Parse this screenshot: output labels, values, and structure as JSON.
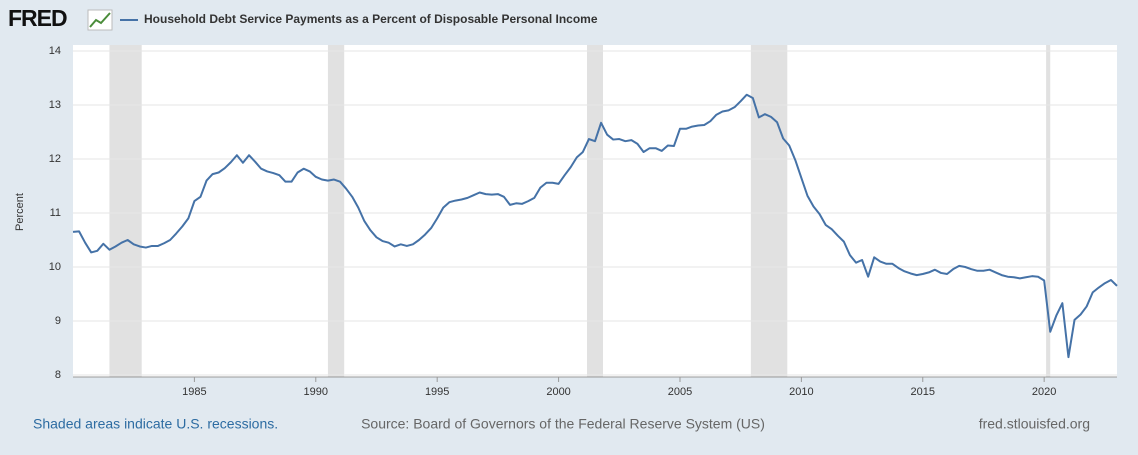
{
  "brand": "FRED",
  "chart_data": {
    "type": "line",
    "series": [
      {
        "name": "Household Debt Service Payments as a Percent of Disposable Personal Income",
        "color": "#4572a7",
        "values": [
          10.65,
          10.66,
          10.45,
          10.27,
          10.3,
          10.43,
          10.32,
          10.38,
          10.45,
          10.5,
          10.42,
          10.38,
          10.36,
          10.39,
          10.39,
          10.44,
          10.5,
          10.62,
          10.75,
          10.9,
          11.22,
          11.3,
          11.6,
          11.72,
          11.75,
          11.83,
          11.94,
          12.07,
          11.93,
          12.07,
          11.95,
          11.82,
          11.77,
          11.74,
          11.7,
          11.58,
          11.58,
          11.75,
          11.82,
          11.77,
          11.67,
          11.62,
          11.6,
          11.62,
          11.58,
          11.45,
          11.3,
          11.1,
          10.85,
          10.68,
          10.55,
          10.48,
          10.45,
          10.38,
          10.42,
          10.39,
          10.42,
          10.5,
          10.6,
          10.72,
          10.9,
          11.1,
          11.2,
          11.23,
          11.25,
          11.28,
          11.33,
          11.38,
          11.35,
          11.34,
          11.35,
          11.3,
          11.15,
          11.18,
          11.17,
          11.22,
          11.28,
          11.47,
          11.56,
          11.56,
          11.54,
          11.7,
          11.85,
          12.03,
          12.13,
          12.37,
          12.33,
          12.67,
          12.45,
          12.36,
          12.37,
          12.33,
          12.35,
          12.28,
          12.13,
          12.2,
          12.2,
          12.15,
          12.25,
          12.24,
          12.56,
          12.56,
          12.6,
          12.62,
          12.63,
          12.7,
          12.82,
          12.88,
          12.9,
          12.96,
          13.07,
          13.19,
          13.13,
          12.77,
          12.83,
          12.78,
          12.68,
          12.38,
          12.25,
          11.98,
          11.65,
          11.32,
          11.12,
          10.98,
          10.78,
          10.7,
          10.58,
          10.47,
          10.22,
          10.08,
          10.13,
          9.82,
          10.18,
          10.1,
          10.06,
          10.06,
          9.98,
          9.92,
          9.88,
          9.85,
          9.87,
          9.9,
          9.95,
          9.89,
          9.87,
          9.96,
          10.02,
          10.0,
          9.96,
          9.93,
          9.93,
          9.95,
          9.9,
          9.85,
          9.82,
          9.81,
          9.79,
          9.81,
          9.83,
          9.82,
          9.75,
          8.8,
          9.1,
          9.33,
          8.33,
          9.02,
          9.12,
          9.27,
          9.53,
          9.62,
          9.7,
          9.76,
          9.65
        ]
      }
    ],
    "x": [
      1980,
      1980.25,
      1980.5,
      1980.75,
      1981,
      1981.25,
      1981.5,
      1981.75,
      1982,
      1982.25,
      1982.5,
      1982.75,
      1983,
      1983.25,
      1983.5,
      1983.75,
      1984,
      1984.25,
      1984.5,
      1984.75,
      1985,
      1985.25,
      1985.5,
      1985.75,
      1986,
      1986.25,
      1986.5,
      1986.75,
      1987,
      1987.25,
      1987.5,
      1987.75,
      1988,
      1988.25,
      1988.5,
      1988.75,
      1989,
      1989.25,
      1989.5,
      1989.75,
      1990,
      1990.25,
      1990.5,
      1990.75,
      1991,
      1991.25,
      1991.5,
      1991.75,
      1992,
      1992.25,
      1992.5,
      1992.75,
      1993,
      1993.25,
      1993.5,
      1993.75,
      1994,
      1994.25,
      1994.5,
      1994.75,
      1995,
      1995.25,
      1995.5,
      1995.75,
      1996,
      1996.25,
      1996.5,
      1996.75,
      1997,
      1997.25,
      1997.5,
      1997.75,
      1998,
      1998.25,
      1998.5,
      1998.75,
      1999,
      1999.25,
      1999.5,
      1999.75,
      2000,
      2000.25,
      2000.5,
      2000.75,
      2001,
      2001.25,
      2001.5,
      2001.75,
      2002,
      2002.25,
      2002.5,
      2002.75,
      2003,
      2003.25,
      2003.5,
      2003.75,
      2004,
      2004.25,
      2004.5,
      2004.75,
      2005,
      2005.25,
      2005.5,
      2005.75,
      2006,
      2006.25,
      2006.5,
      2006.75,
      2007,
      2007.25,
      2007.5,
      2007.75,
      2008,
      2008.25,
      2008.5,
      2008.75,
      2009,
      2009.25,
      2009.5,
      2009.75,
      2010,
      2010.25,
      2010.5,
      2010.75,
      2011,
      2011.25,
      2011.5,
      2011.75,
      2012,
      2012.25,
      2012.5,
      2012.75,
      2013,
      2013.25,
      2013.5,
      2013.75,
      2014,
      2014.25,
      2014.5,
      2014.75,
      2015,
      2015.25,
      2015.5,
      2015.75,
      2016,
      2016.25,
      2016.5,
      2016.75,
      2017,
      2017.25,
      2017.5,
      2017.75,
      2018,
      2018.25,
      2018.5,
      2018.75,
      2019,
      2019.25,
      2019.5,
      2019.75,
      2020,
      2020.25,
      2020.5,
      2020.75,
      2021,
      2021.25,
      2021.5,
      2021.75,
      2022,
      2022.25,
      2022.5,
      2022.75,
      2023
    ],
    "recessions": [
      [
        1981.5,
        1982.83
      ],
      [
        1990.5,
        1991.17
      ],
      [
        2001.17,
        2001.83
      ],
      [
        2007.92,
        2009.42
      ],
      [
        2020.08,
        2020.25
      ]
    ],
    "recession_color": "#e1e1e1",
    "ylabel": "Percent",
    "xlim": [
      1980,
      2023
    ],
    "xticks": [
      1985,
      1990,
      1995,
      2000,
      2005,
      2010,
      2015,
      2020
    ],
    "ylim": [
      8,
      14
    ],
    "yticks": [
      8,
      9,
      10,
      11,
      12,
      13,
      14
    ],
    "grid": true
  },
  "footer": {
    "note": "Shaded areas indicate U.S. recessions.",
    "source": "Source: Board of Governors of the Federal Reserve System (US)",
    "site": "fred.stlouisfed.org"
  }
}
